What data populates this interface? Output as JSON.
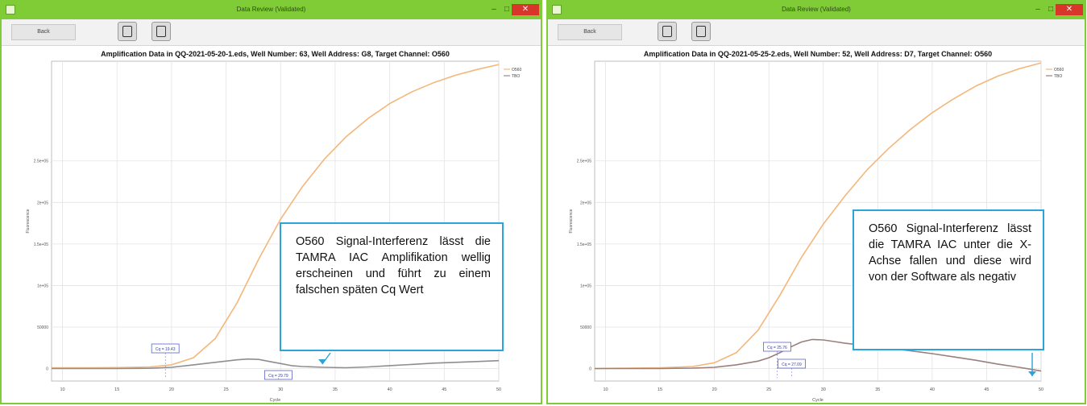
{
  "windows": [
    {
      "title": "Data Review (Validated)",
      "toolbar": {
        "button_label": "Back"
      },
      "controls": {
        "minimize": "–",
        "maximize": "□",
        "close": "✕"
      },
      "callout": {
        "text": "O560 Signal-Interferenz lässt die TAMRA IAC Amplifikation wellig erscheinen und führt zu einem falschen späten Cq Wert"
      }
    },
    {
      "title": "Data Review (Validated)",
      "toolbar": {
        "button_label": "Back"
      },
      "controls": {
        "minimize": "–",
        "maximize": "□",
        "close": "✕"
      },
      "callout": {
        "text": "O560 Signal-Interferenz lässt die TAMRA IAC unter die X-Achse fallen und diese wird von der Software als negativ"
      }
    }
  ],
  "chart_data": [
    {
      "type": "line",
      "title": "Amplification Data in QQ-2021-05-20-1.eds, Well Number: 63, Well Address: G8, Target Channel: O560",
      "xlabel": "Cycle",
      "ylabel": "Fluorescence",
      "xlim": [
        9,
        50
      ],
      "ylim": [
        -1500,
        37000
      ],
      "xticks": [
        10,
        15,
        20,
        25,
        30,
        35,
        40,
        45,
        50
      ],
      "xtick_labels": [
        "10",
        "15",
        "20",
        "25",
        "30",
        "35",
        "40",
        "45",
        "50"
      ],
      "yticks": [
        0,
        5000,
        10000,
        15000,
        20000,
        25000
      ],
      "ytick_labels": [
        "0",
        "50000",
        "1e+05",
        "1.5e+05",
        "2e+05",
        "2.5e+05"
      ],
      "grid": true,
      "legend": "top-right",
      "series": [
        {
          "name": "O560",
          "color": "#f3b77a",
          "x": [
            9,
            12,
            15,
            18,
            20,
            22,
            24,
            26,
            28,
            30,
            32,
            34,
            36,
            38,
            40,
            42,
            44,
            46,
            48,
            50
          ],
          "y": [
            100,
            100,
            120,
            200,
            450,
            1300,
            3600,
            7900,
            13200,
            18000,
            21900,
            25200,
            27900,
            30100,
            31900,
            33300,
            34400,
            35300,
            36000,
            36600
          ]
        },
        {
          "name": "TBO",
          "color": "#8e8e8e",
          "x": [
            9,
            12,
            15,
            18,
            20,
            22,
            24,
            26,
            27,
            28,
            29,
            30,
            31,
            32,
            34,
            36,
            38,
            40,
            42,
            44,
            46,
            48,
            50
          ],
          "y": [
            0,
            0,
            0,
            30,
            150,
            450,
            750,
            1050,
            1150,
            1100,
            850,
            600,
            350,
            250,
            150,
            100,
            200,
            350,
            500,
            650,
            750,
            850,
            950
          ]
        }
      ],
      "annotations": [
        {
          "text": "Cq = 19.43",
          "x": 19.43
        },
        {
          "text": "Cq = 29.79",
          "x": 29.79
        }
      ]
    },
    {
      "type": "line",
      "title": "Amplification Data in QQ-2021-05-25-2.eds, Well Number: 52, Well Address: D7, Target Channel: O560",
      "xlabel": "Cycle",
      "ylabel": "Fluorescence",
      "xlim": [
        9,
        50
      ],
      "ylim": [
        -1500,
        37000
      ],
      "xticks": [
        10,
        15,
        20,
        25,
        30,
        35,
        40,
        45,
        50
      ],
      "xtick_labels": [
        "10",
        "15",
        "20",
        "25",
        "30",
        "35",
        "40",
        "45",
        "50"
      ],
      "yticks": [
        0,
        5000,
        10000,
        15000,
        20000,
        25000
      ],
      "ytick_labels": [
        "0",
        "50000",
        "1e+05",
        "1.5e+05",
        "2e+05",
        "2.5e+05"
      ],
      "grid": true,
      "legend": "top-right",
      "series": [
        {
          "name": "O560",
          "color": "#f3b77a",
          "x": [
            9,
            12,
            15,
            18,
            20,
            22,
            24,
            26,
            28,
            30,
            32,
            34,
            36,
            38,
            40,
            42,
            44,
            46,
            48,
            50
          ],
          "y": [
            0,
            50,
            100,
            250,
            700,
            1900,
            4600,
            8800,
            13400,
            17400,
            20800,
            23900,
            26500,
            28800,
            30800,
            32500,
            34000,
            35200,
            36100,
            36800
          ]
        },
        {
          "name": "TBO",
          "color": "#9a7f7f",
          "x": [
            9,
            12,
            15,
            18,
            20,
            22,
            24,
            25,
            26,
            27,
            28,
            29,
            30,
            31,
            32,
            34,
            36,
            38,
            40,
            42,
            44,
            46,
            48,
            50
          ],
          "y": [
            0,
            0,
            0,
            50,
            150,
            450,
            900,
            1300,
            1900,
            2600,
            3200,
            3500,
            3450,
            3250,
            3050,
            2750,
            2450,
            2150,
            1800,
            1400,
            1000,
            550,
            150,
            -300
          ]
        }
      ],
      "annotations": [
        {
          "text": "Cq = 25.76",
          "x": 25.76
        },
        {
          "text": "Cq = 27.09",
          "x": 27.09
        }
      ]
    }
  ]
}
